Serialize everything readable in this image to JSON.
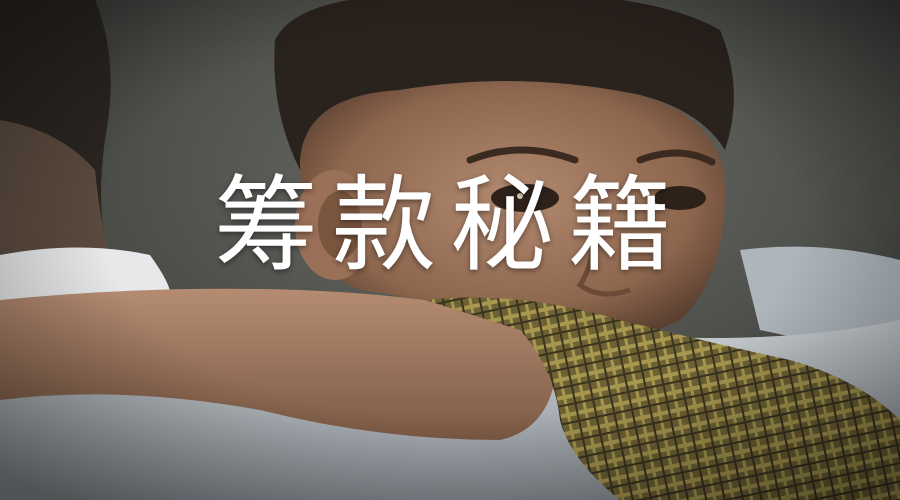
{
  "banner": {
    "title": "筹款秘籍"
  },
  "photo": {
    "subject": "child-resting-on-arm",
    "palette": {
      "background": "#4a4c48",
      "skin": "#a27a61",
      "hair": "#2a221d",
      "shirt": "#c2c7cb",
      "plaid": "#8a7a3c"
    }
  }
}
